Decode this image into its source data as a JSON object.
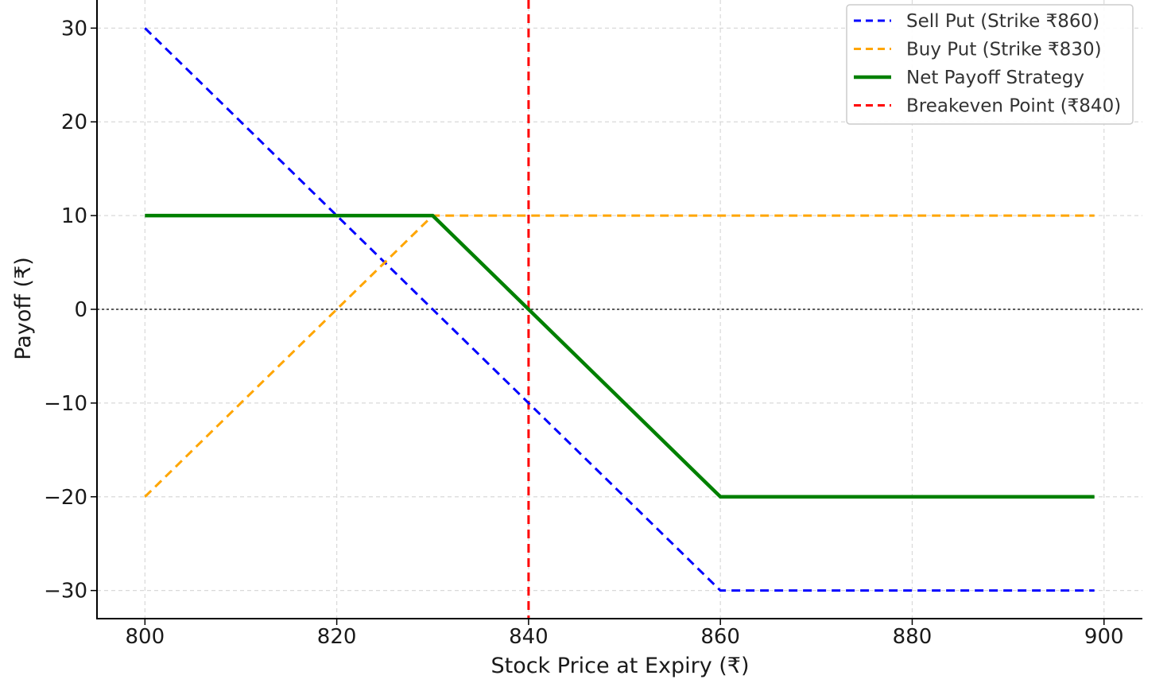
{
  "chart_data": {
    "type": "line",
    "title": "",
    "xlabel": "Stock Price at Expiry (₹)",
    "ylabel": "Payoff (₹)",
    "xlim": [
      795,
      904
    ],
    "ylim": [
      -33,
      33
    ],
    "xticks": [
      800,
      820,
      840,
      860,
      880,
      900
    ],
    "yticks": [
      30,
      20,
      10,
      0,
      -10,
      -20,
      -30
    ],
    "xtick_labels": [
      "800",
      "820",
      "840",
      "860",
      "880",
      "900"
    ],
    "ytick_labels": [
      "30",
      "20",
      "10",
      "0",
      "−10",
      "−20",
      "−30"
    ],
    "grid": true,
    "legend_position": "top-right",
    "series": [
      {
        "name": "Sell Put (Strike ₹860)",
        "color": "#0000ff",
        "style": "dashed",
        "points": [
          [
            800,
            30
          ],
          [
            860,
            -30
          ],
          [
            899,
            -30
          ]
        ]
      },
      {
        "name": "Buy Put (Strike ₹830)",
        "color": "#ffa500",
        "style": "dashed",
        "points": [
          [
            800,
            -20
          ],
          [
            830,
            10
          ],
          [
            899,
            10
          ]
        ]
      },
      {
        "name": "Net Payoff Strategy",
        "color": "#008000",
        "style": "solid",
        "points": [
          [
            800,
            10
          ],
          [
            830,
            10
          ],
          [
            860,
            -20
          ],
          [
            899,
            -20
          ]
        ]
      }
    ],
    "reference_lines": [
      {
        "name": "Breakeven Point (₹840)",
        "orientation": "vertical",
        "value": 840,
        "color": "#ff0000",
        "style": "dashed"
      },
      {
        "name": "zero-line",
        "orientation": "horizontal",
        "value": 0,
        "color": "#000000",
        "style": "dotted"
      }
    ]
  }
}
